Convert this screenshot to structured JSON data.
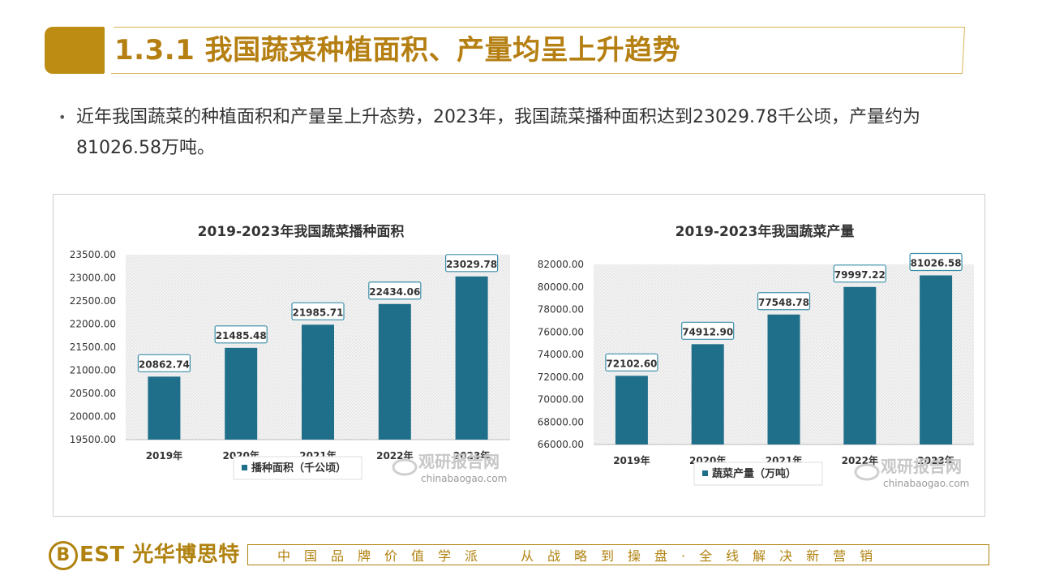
{
  "header": {
    "title": "1.3.1 我国蔬菜种植面积、产量均呈上升趋势"
  },
  "bullet": {
    "text": "近年我国蔬菜的种植面积和产量呈上升态势，2023年，我国蔬菜播种面积达到23029.78千公顷，产量约为81026.58万吨。"
  },
  "watermark": {
    "brand": "观研报告网",
    "url": "chinabaogao.com"
  },
  "footer": {
    "logo_letter": "B",
    "logo_text": "EST 光华博思特",
    "slogan_left": "中国品牌价值学派",
    "slogan_right": "从战略到操盘·全线解决新营销"
  },
  "colors": {
    "accent": "#bd8d13",
    "bar": "#1f6f8b"
  },
  "chart_data": [
    {
      "type": "bar",
      "title": "2019-2023年我国蔬菜播种面积",
      "categories": [
        "2019年",
        "2020年",
        "2021年",
        "2022年",
        "2023年"
      ],
      "series": [
        {
          "name": "播种面积（千公顷）",
          "values": [
            20862.74,
            21485.48,
            21985.71,
            22434.06,
            23029.78
          ]
        }
      ],
      "value_labels": [
        "20862.74",
        "21485.48",
        "21985.71",
        "22434.06",
        "23029.78"
      ],
      "yticks": [
        "19500.00",
        "20000.00",
        "20500.00",
        "21000.00",
        "21500.00",
        "22000.00",
        "22500.00",
        "23000.00",
        "23500.00"
      ],
      "ylim": [
        19500,
        23500
      ],
      "grid": false,
      "legend": "bottom"
    },
    {
      "type": "bar",
      "title": "2019-2023年我国蔬菜产量",
      "categories": [
        "2019年",
        "2020年",
        "2021年",
        "2022年",
        "2023年"
      ],
      "series": [
        {
          "name": "蔬菜产量（万吨）",
          "values": [
            72102.6,
            74912.9,
            77548.78,
            79997.22,
            81026.58
          ]
        }
      ],
      "value_labels": [
        "72102.60",
        "74912.90",
        "77548.78",
        "79997.22",
        "81026.58"
      ],
      "yticks": [
        "66000.00",
        "68000.00",
        "70000.00",
        "72000.00",
        "74000.00",
        "76000.00",
        "78000.00",
        "80000.00",
        "82000.00"
      ],
      "ylim": [
        66000,
        82000
      ],
      "grid": false,
      "legend": "bottom"
    }
  ]
}
